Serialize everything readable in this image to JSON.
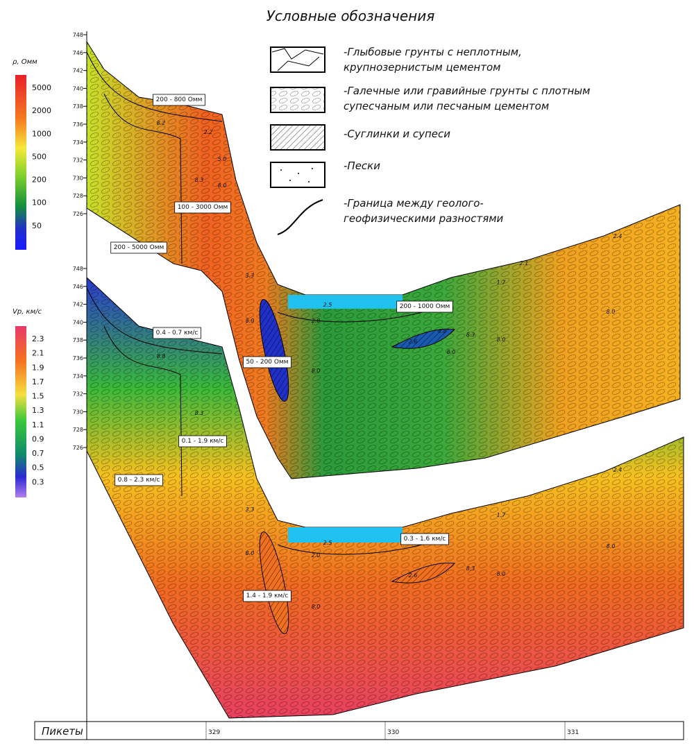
{
  "legend": {
    "title": "Условные обозначения",
    "items": [
      [
        "-Глыбовые грунты с неплотным,",
        "крупнозернистым цементом"
      ],
      [
        "-Галечные или гравийные грунты с плотным",
        "супесчаным или песчаным цементом"
      ],
      [
        "-Суглинки и супеси"
      ],
      [
        "-Пески"
      ],
      [
        "-Граница между геолого-",
        "геофизическими разностями"
      ]
    ]
  },
  "scales": [
    {
      "title": "ρ, Омм",
      "labels": [
        "5000",
        "2000",
        "1000",
        "500",
        "200",
        "100",
        "50"
      ]
    },
    {
      "title": "Vp, км/с",
      "labels": [
        "2.3",
        "2.1",
        "1.9",
        "1.7",
        "1.5",
        "1.3",
        "1.1",
        "0.9",
        "0.7",
        "0.5",
        "0.3"
      ]
    }
  ],
  "elevation_axes": [
    {
      "labels": [
        "748",
        "746",
        "742",
        "740",
        "738",
        "736",
        "734",
        "732",
        "730",
        "728",
        "726"
      ]
    },
    {
      "labels": [
        "748",
        "746",
        "742",
        "740",
        "738",
        "736",
        "734",
        "732",
        "730",
        "728",
        "726"
      ]
    }
  ],
  "sections": [
    {
      "zones": [
        "200 - 800 Омм",
        "100 - 3000 Омм",
        "200 - 5000 Омм",
        "200 - 1000 Омм",
        "50 - 200 Омм"
      ],
      "marks": [
        "8.2",
        "8.3",
        "2.2",
        "5.0",
        "8.0",
        "2.5",
        "2.6",
        "8.3",
        "2.1",
        "2.4",
        "1.7",
        "8.0",
        "3.3",
        "8.0",
        "2.0",
        "8.0",
        "8.0",
        "4.8",
        "8.0"
      ]
    },
    {
      "zones": [
        "0.4 - 0.7 км/с",
        "0.1 - 1.9 км/с",
        "0.8 - 2.3 км/с",
        "0.3 - 1.6 км/с",
        "1.4 - 1.9 км/с"
      ],
      "marks": [
        "8.8",
        "8.3",
        "2.5",
        "2.6",
        "8.3",
        "2.4",
        "3.3",
        "8.0",
        "2.0",
        "8.0",
        "1.7",
        "8.0",
        "8.0"
      ]
    }
  ],
  "pickets": {
    "title": "Пикеты",
    "labels": [
      "329",
      "330",
      "331"
    ]
  }
}
